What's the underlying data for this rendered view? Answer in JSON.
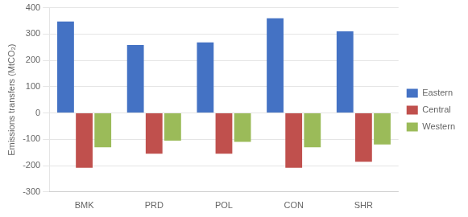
{
  "chart_data": {
    "type": "bar",
    "categories": [
      "BMK",
      "PRD",
      "POL",
      "CON",
      "SHR"
    ],
    "series": [
      {
        "name": "Eastern",
        "color": "#4472C4",
        "values": [
          348,
          258,
          268,
          360,
          310
        ]
      },
      {
        "name": "Central",
        "color": "#C0504D",
        "values": [
          -208,
          -155,
          -155,
          -208,
          -185
        ]
      },
      {
        "name": "Western",
        "color": "#9BBB59",
        "values": [
          -130,
          -105,
          -110,
          -130,
          -120
        ]
      }
    ],
    "ylabel": "Emissions transfers (MtCO₂)",
    "ylim": [
      -300,
      400
    ],
    "yticks": [
      -300,
      -200,
      -100,
      0,
      100,
      200,
      300,
      400
    ],
    "grid": true,
    "legend": "right"
  }
}
